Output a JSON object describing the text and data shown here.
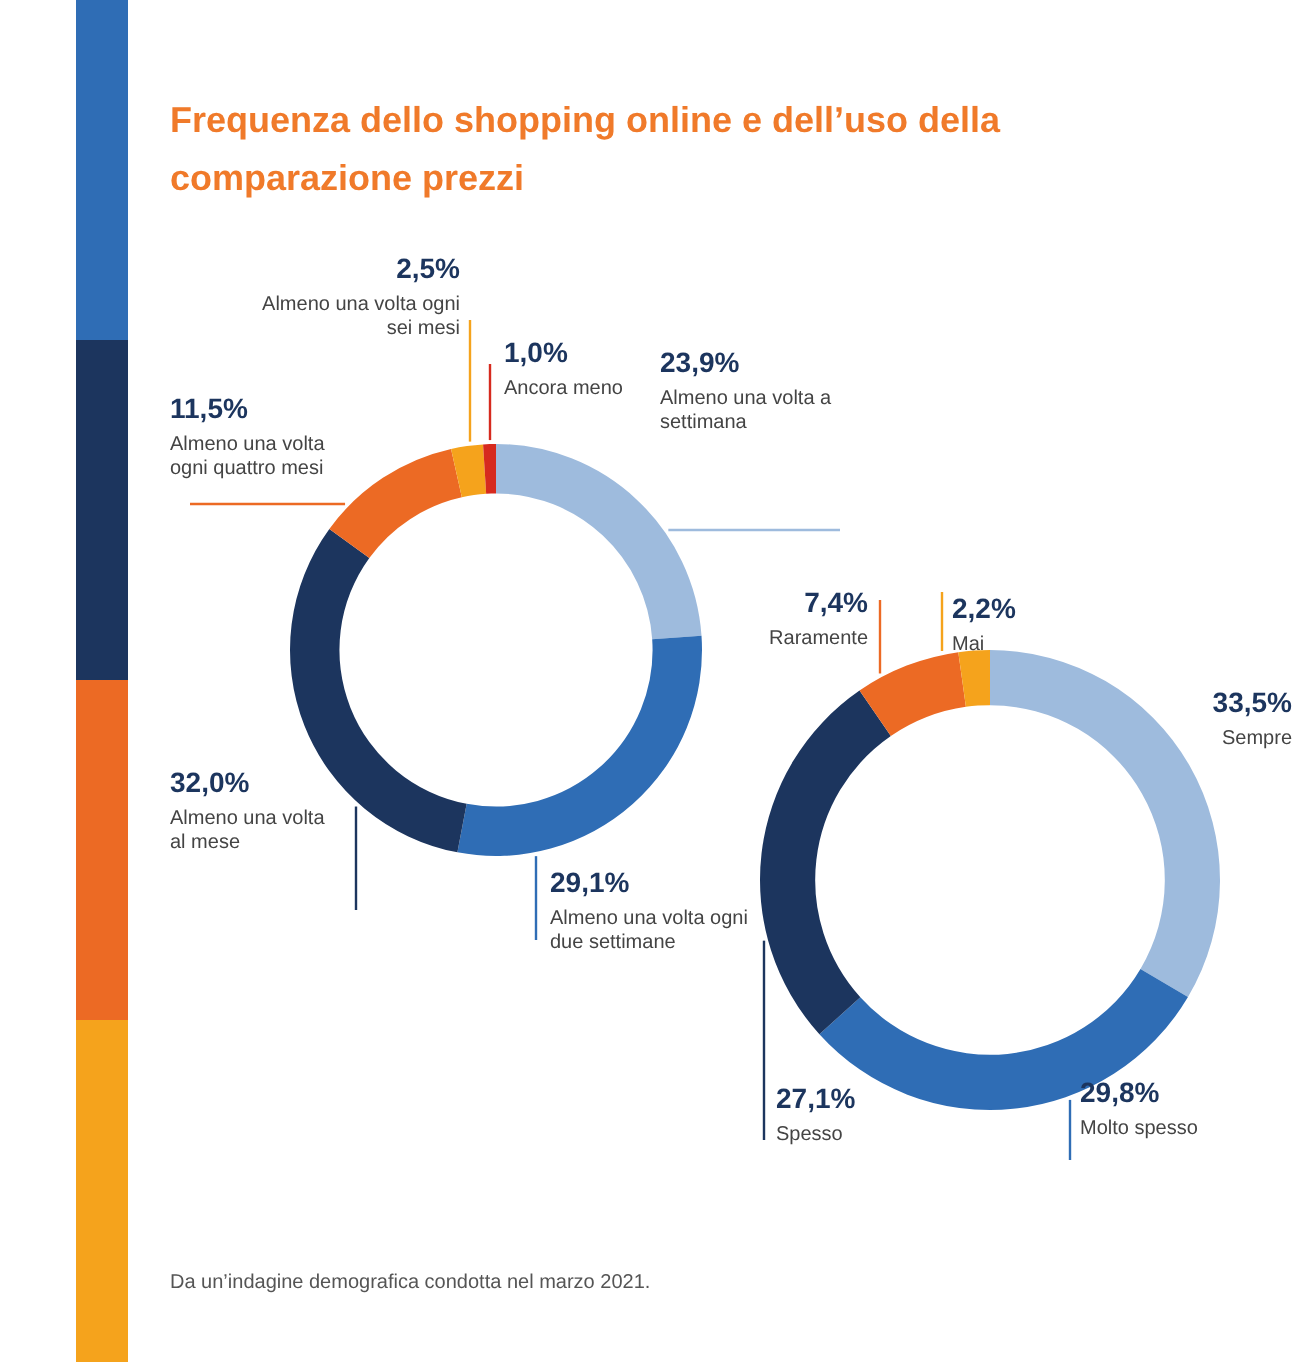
{
  "chart_data": [
    {
      "type": "donut",
      "title": "Frequenza dello shopping online e dell’uso della comparazione prezzi",
      "categories": [
        "Almeno una volta a settimana",
        "Almeno una volta ogni due settimane",
        "Almeno una volta al mese",
        "Almeno una volta ogni quattro mesi",
        "Almeno una volta ogni sei mesi",
        "Ancora meno"
      ],
      "values": [
        23.9,
        29.1,
        32.0,
        11.5,
        2.5,
        1.0
      ],
      "colors": [
        "#9ebbdd",
        "#2f6db5",
        "#1c355e",
        "#ec6a24",
        "#f5a31c",
        "#d62a1e"
      ],
      "value_labels": [
        "23,9%",
        "29,1%",
        "32,0%",
        "11,5%",
        "2,5%",
        "1,0%"
      ],
      "legend": false
    },
    {
      "type": "donut",
      "categories": [
        "Sempre",
        "Molto spesso",
        "Spesso",
        "Raramente",
        "Mai"
      ],
      "values": [
        33.5,
        29.8,
        27.1,
        7.4,
        2.2
      ],
      "colors": [
        "#9ebbdd",
        "#2f6db5",
        "#1c355e",
        "#ec6a24",
        "#f5a31c"
      ],
      "value_labels": [
        "33,5%",
        "29,8%",
        "27,1%",
        "7,4%",
        "2,2%"
      ],
      "legend": false,
      "annotations": [
        "Da un’indagine demografica condotta nel marzo 2021."
      ]
    }
  ]
}
